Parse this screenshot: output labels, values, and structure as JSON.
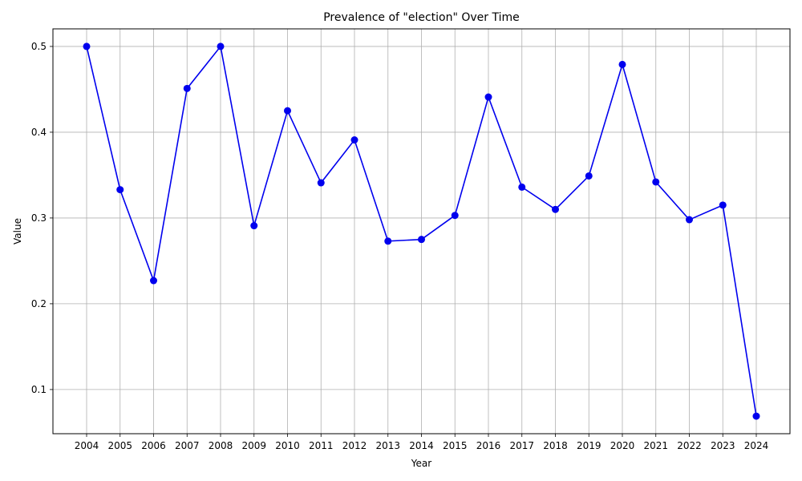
{
  "chart_data": {
    "type": "line",
    "title": "Prevalence of \"election\" Over Time",
    "xlabel": "Year",
    "ylabel": "Value",
    "x": [
      "2004",
      "2005",
      "2006",
      "2007",
      "2008",
      "2009",
      "2010",
      "2011",
      "2012",
      "2013",
      "2014",
      "2015",
      "2016",
      "2017",
      "2018",
      "2019",
      "2020",
      "2021",
      "2022",
      "2023",
      "2024"
    ],
    "series": [
      {
        "values": [
          0.5,
          0.333,
          0.227,
          0.451,
          0.5,
          0.291,
          0.425,
          0.341,
          0.391,
          0.273,
          0.275,
          0.303,
          0.441,
          0.336,
          0.31,
          0.349,
          0.479,
          0.342,
          0.298,
          0.315,
          0.069
        ],
        "color": "#0000ee"
      }
    ],
    "ylim": [
      0.0485,
      0.5205
    ],
    "yticks": [
      0.1,
      0.2,
      0.3,
      0.4,
      0.5
    ],
    "grid": true,
    "grid_color": "#b0b0b0",
    "marker": "circle"
  }
}
